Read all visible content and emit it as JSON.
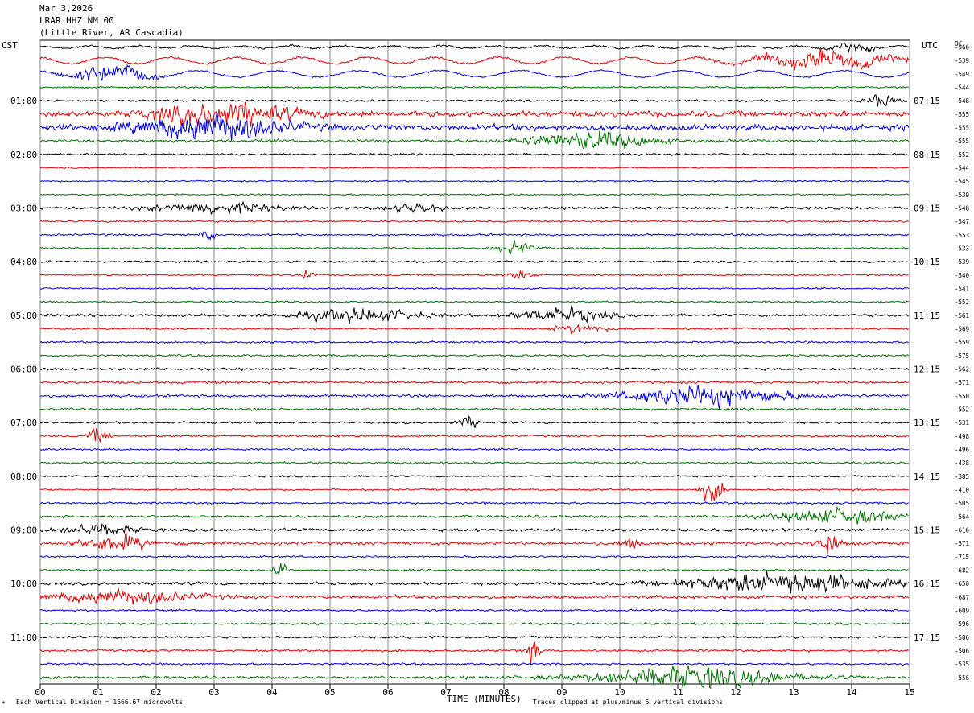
{
  "header": {
    "date": "Mar 3,2026",
    "station": "LRAR HHZ NM 00",
    "location": "(Little River, AR Cascadia)"
  },
  "labels": {
    "left_tz": "CST",
    "right_tz": "UTC",
    "dc": "DC",
    "x_title": "TIME (MINUTES)",
    "scale_note": "Each Vertical Division = 1666.67 microvolts",
    "clip_note": "Traces clipped at plus/minus 5 vertical divisions",
    "corner_mark": "*"
  },
  "chart_data": {
    "type": "line",
    "title": "LRAR HHZ NM 00",
    "xlabel": "TIME (MINUTES)",
    "ylabel": "",
    "xlim": [
      0,
      15
    ],
    "x_ticks": [
      "00",
      "01",
      "02",
      "03",
      "04",
      "05",
      "06",
      "07",
      "08",
      "09",
      "10",
      "11",
      "12",
      "13",
      "14",
      "15"
    ],
    "trace_colors": [
      "#000000",
      "#dd0000",
      "#0000dd",
      "#007000"
    ],
    "cst_labels": [
      "01:00",
      "02:00",
      "03:00",
      "04:00",
      "05:00",
      "06:00",
      "07:00",
      "08:00",
      "09:00",
      "10:00",
      "11:00"
    ],
    "utc_labels": [
      "07:15",
      "08:15",
      "09:15",
      "10:15",
      "11:15",
      "12:15",
      "13:15",
      "14:15",
      "15:15",
      "16:15",
      "17:15"
    ],
    "dc_offsets": [
      "-566",
      "-539",
      "-549",
      "-544",
      "-548",
      "-555",
      "-555",
      "-555",
      "-552",
      "-544",
      "-545",
      "-539",
      "-548",
      "-547",
      "-553",
      "-533",
      "-539",
      "-540",
      "-541",
      "-552",
      "-561",
      "-569",
      "-559",
      "-575",
      "-562",
      "-571",
      "-550",
      "-552",
      "-531",
      "-498",
      "-496",
      "-438",
      "-385",
      "-410",
      "-505",
      "-564",
      "-616",
      "-571",
      "-715",
      "-682",
      "-650",
      "-687",
      "-609",
      "-596",
      "-586",
      "-506",
      "-535",
      "-556"
    ],
    "trace_level": [
      1,
      1,
      0.8,
      0.9,
      1,
      3,
      3,
      1.5,
      1,
      0.7,
      0.7,
      0.8,
      1.3,
      0.9,
      1,
      0.9,
      1,
      0.8,
      0.8,
      0.9,
      1.3,
      1,
      1,
      1.1,
      1.2,
      1.2,
      1.3,
      1.2,
      1,
      1,
      1,
      1,
      0.9,
      0.9,
      1,
      1.3,
      1.5,
      1.6,
      1,
      1,
      1.5,
      1.7,
      1,
      1,
      1.2,
      1.1,
      1,
      1.4
    ],
    "events": [
      {
        "trace": 0,
        "x": 14.0,
        "width": 0.9,
        "amp": 5
      },
      {
        "trace": 1,
        "x": 13.5,
        "width": 3,
        "amp": 9
      },
      {
        "trace": 2,
        "x": 1.2,
        "width": 1.5,
        "amp": 11
      },
      {
        "trace": 4,
        "x": 14.5,
        "width": 0.6,
        "amp": 7
      },
      {
        "trace": 5,
        "x": 3.2,
        "width": 2.8,
        "amp": 12
      },
      {
        "trace": 6,
        "x": 3.0,
        "width": 3.0,
        "amp": 13
      },
      {
        "trace": 7,
        "x": 9.5,
        "width": 2.5,
        "amp": 10
      },
      {
        "trace": 12,
        "x": 3.0,
        "width": 2.5,
        "amp": 6
      },
      {
        "trace": 12,
        "x": 6.5,
        "width": 1.2,
        "amp": 5
      },
      {
        "trace": 14,
        "x": 2.9,
        "width": 0.3,
        "amp": 6
      },
      {
        "trace": 15,
        "x": 8.2,
        "width": 0.8,
        "amp": 7
      },
      {
        "trace": 17,
        "x": 4.6,
        "width": 0.3,
        "amp": 6
      },
      {
        "trace": 17,
        "x": 8.3,
        "width": 0.6,
        "amp": 5
      },
      {
        "trace": 20,
        "x": 5.5,
        "width": 2.5,
        "amp": 7
      },
      {
        "trace": 20,
        "x": 9.0,
        "width": 1.8,
        "amp": 8
      },
      {
        "trace": 21,
        "x": 9.3,
        "width": 1.0,
        "amp": 5
      },
      {
        "trace": 26,
        "x": 11.5,
        "width": 3.5,
        "amp": 11
      },
      {
        "trace": 28,
        "x": 7.4,
        "width": 0.5,
        "amp": 6
      },
      {
        "trace": 29,
        "x": 1.0,
        "width": 0.4,
        "amp": 8
      },
      {
        "trace": 33,
        "x": 11.6,
        "width": 0.5,
        "amp": 13
      },
      {
        "trace": 35,
        "x": 13.8,
        "width": 2.5,
        "amp": 8
      },
      {
        "trace": 36,
        "x": 1.0,
        "width": 1.5,
        "amp": 6
      },
      {
        "trace": 37,
        "x": 1.3,
        "width": 1.5,
        "amp": 9
      },
      {
        "trace": 37,
        "x": 13.6,
        "width": 0.5,
        "amp": 13
      },
      {
        "trace": 37,
        "x": 10.2,
        "width": 0.4,
        "amp": 7
      },
      {
        "trace": 39,
        "x": 4.15,
        "width": 0.25,
        "amp": 11
      },
      {
        "trace": 40,
        "x": 12.8,
        "width": 4,
        "amp": 12
      },
      {
        "trace": 41,
        "x": 1.5,
        "width": 3,
        "amp": 7
      },
      {
        "trace": 45,
        "x": 8.5,
        "width": 0.3,
        "amp": 11
      },
      {
        "trace": 47,
        "x": 11.2,
        "width": 4,
        "amp": 12
      }
    ]
  }
}
